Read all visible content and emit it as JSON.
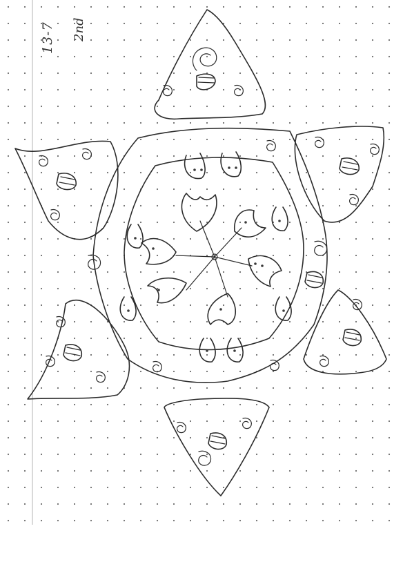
{
  "handwriting": {
    "date": "13-7",
    "count_note": "2nd"
  },
  "drawing": {
    "subject": "star-kolam-drawing",
    "grid": "dot-grid",
    "ink_color": "#2b2b2b",
    "paper_color": "#ffffff"
  }
}
